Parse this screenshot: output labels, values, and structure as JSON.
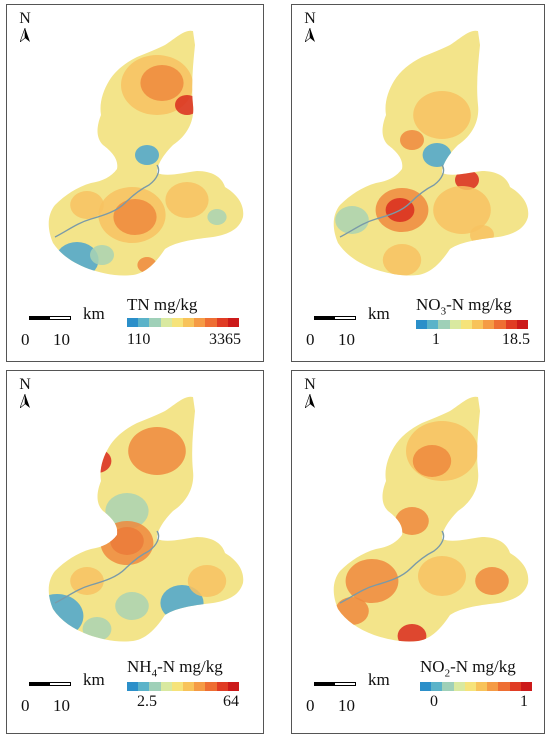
{
  "north_label": "N",
  "scale": {
    "zero": "0",
    "ten": "10",
    "unit": "km"
  },
  "panels": [
    {
      "title_main": "TN mg/kg",
      "title_pre": "",
      "title_sub": "",
      "title_post": "",
      "min": "110",
      "max": "3365"
    },
    {
      "title_main": "",
      "title_pre": "NO",
      "title_sub": "3",
      "title_post": "-N mg/kg",
      "min": "1",
      "max": "18.5"
    },
    {
      "title_main": "",
      "title_pre": "NH",
      "title_sub": "4",
      "title_post": "-N mg/kg",
      "min": "2.5",
      "max": "64"
    },
    {
      "title_main": "",
      "title_pre": "NO",
      "title_sub": "2",
      "title_post": "-N mg/kg",
      "min": "0",
      "max": "1"
    }
  ],
  "ramp_colors": [
    "#2b8fc9",
    "#5bb3c9",
    "#9fd0b8",
    "#d9e9a0",
    "#f6e37a",
    "#f8c35a",
    "#f59b45",
    "#ee6e33",
    "#e03c24",
    "#cc1a1a"
  ],
  "map_colors": {
    "low": "#4aa6cf",
    "midlow": "#a9d3b3",
    "mid": "#f3e48a",
    "midhigh": "#f7c262",
    "high": "#ef8a3e",
    "peak": "#d92b1e",
    "river": "#7a9aa8"
  }
}
